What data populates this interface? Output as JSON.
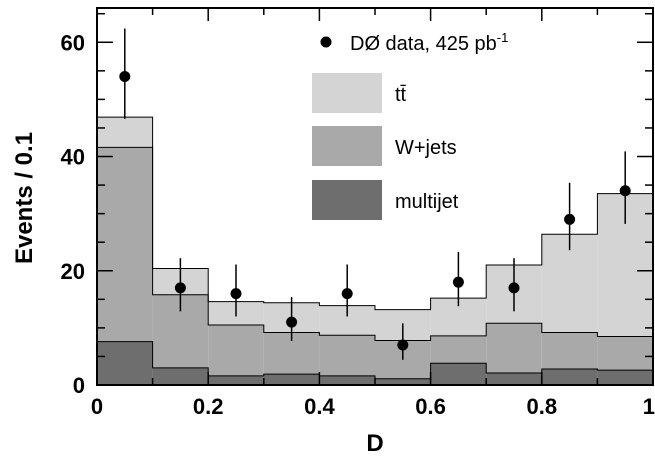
{
  "chart_data": {
    "type": "bar",
    "xlabel": "D",
    "ylabel": "Events / 0.1",
    "xlim": [
      0,
      1
    ],
    "ylim": [
      0,
      66
    ],
    "x_ticks": [
      "0",
      "0.2",
      "0.4",
      "0.6",
      "0.8",
      "1"
    ],
    "y_ticks": [
      "0",
      "20",
      "40",
      "60"
    ],
    "bin_edges": [
      0,
      0.1,
      0.2,
      0.3,
      0.4,
      0.5,
      0.6,
      0.7,
      0.8,
      0.9,
      1.0
    ],
    "stacked": true,
    "series": [
      {
        "name": "multijet",
        "color": "#6e6e6e",
        "values": [
          7.6,
          3.0,
          1.6,
          1.9,
          1.6,
          1.1,
          3.8,
          2.1,
          2.8,
          2.6
        ]
      },
      {
        "name": "W+jets",
        "color": "#a9a9a9",
        "values": [
          34.0,
          12.8,
          8.9,
          7.3,
          7.1,
          6.7,
          4.8,
          8.7,
          6.4,
          5.9
        ]
      },
      {
        "name": "tt̄",
        "color": "#d4d4d4",
        "values": [
          5.3,
          4.6,
          4.1,
          5.2,
          5.2,
          5.4,
          6.6,
          10.2,
          17.2,
          25.0
        ]
      }
    ],
    "data_points": {
      "name": "DØ data, 425 pb",
      "name_superscript": "-1",
      "x": [
        0.05,
        0.15,
        0.25,
        0.35,
        0.45,
        0.55,
        0.65,
        0.75,
        0.85,
        0.95
      ],
      "y": [
        54,
        17,
        16,
        11,
        16,
        7,
        18,
        17,
        29,
        34
      ],
      "err_low": [
        7.4,
        4.1,
        4.0,
        3.3,
        4.0,
        2.6,
        4.2,
        4.1,
        5.4,
        5.8
      ],
      "err_high": [
        8.4,
        5.2,
        5.1,
        4.4,
        5.1,
        3.8,
        5.3,
        5.2,
        6.4,
        6.9
      ]
    },
    "legend_placement": "top-right",
    "grid": false
  }
}
